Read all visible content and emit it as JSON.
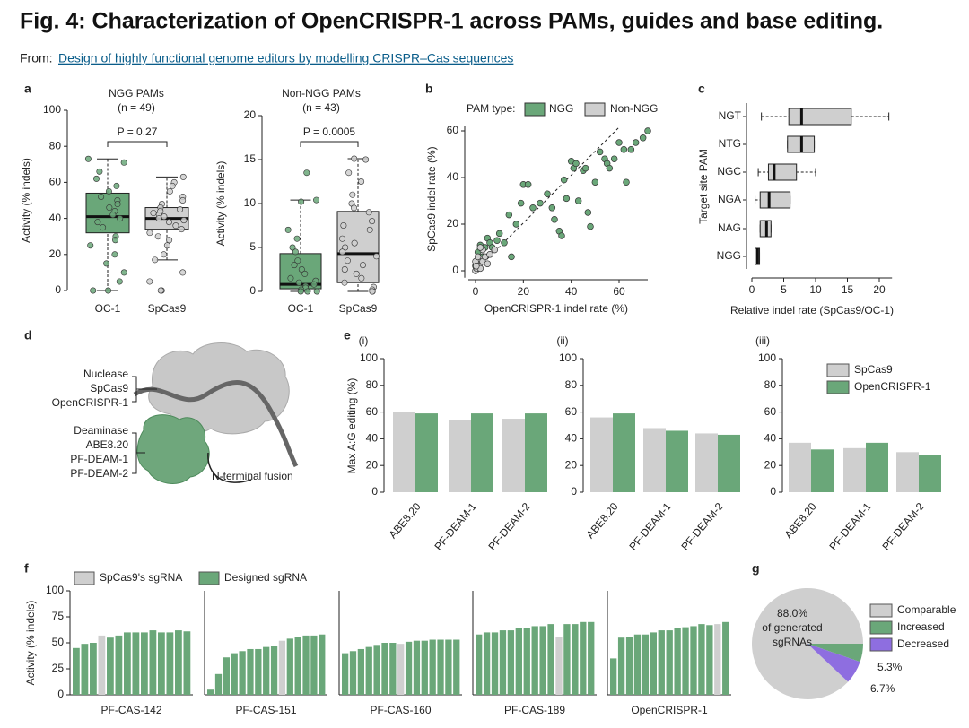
{
  "header": {
    "title": "Fig. 4: Characterization of OpenCRISPR-1 across PAMs, guides and base editing.",
    "from": "From:",
    "link": "Design of highly functional genome editors by modelling CRISPR–Cas sequences"
  },
  "panel_labels": [
    "a",
    "b",
    "c",
    "d",
    "e",
    "f",
    "g"
  ],
  "diagram": {
    "nuclease": [
      "Nuclease",
      "SpCas9",
      "OpenCRISPR-1"
    ],
    "deaminase": [
      "Deaminase",
      "ABE8.20",
      "PF-DEAM-1",
      "PF-DEAM-2"
    ],
    "fusion_label": "N-terminal fusion"
  },
  "chart_data": [
    {
      "type": "box",
      "title": "NGG PAMs",
      "subtitle": "(n = 49)",
      "ylabel": "Activity (% indels)",
      "annotation": "P = 0.27",
      "categories": [
        "OC-1",
        "SpCas9"
      ],
      "ylim": [
        0,
        100
      ],
      "yticks": [
        0,
        20,
        40,
        60,
        80,
        100
      ],
      "boxes": [
        {
          "color": "#6aa779",
          "min": 0,
          "q1": 32,
          "median": 41,
          "q3": 54,
          "max": 73,
          "points": [
            73,
            71,
            66,
            62,
            58,
            55,
            52,
            50,
            48,
            46,
            44,
            42,
            40,
            38,
            35,
            30,
            28,
            25,
            20,
            15,
            10,
            5,
            0,
            0
          ]
        },
        {
          "color": "#cfcfcf",
          "min": 17,
          "q1": 34,
          "median": 40,
          "q3": 46,
          "max": 63,
          "points": [
            63,
            60,
            58,
            55,
            52,
            50,
            48,
            46,
            45,
            44,
            43,
            42,
            41,
            40,
            39,
            38,
            36,
            34,
            32,
            30,
            28,
            25,
            20,
            17,
            10,
            5,
            0,
            0
          ]
        }
      ]
    },
    {
      "type": "box",
      "title": "Non-NGG PAMs",
      "subtitle": "(n = 43)",
      "ylabel": "Activity (% indels)",
      "annotation": "P = 0.0005",
      "categories": [
        "OC-1",
        "SpCas9"
      ],
      "ylim": [
        0,
        20
      ],
      "yticks": [
        0,
        5,
        10,
        15,
        20
      ],
      "boxes": [
        {
          "color": "#6aa779",
          "min": 0,
          "q1": 0.3,
          "median": 0.8,
          "q3": 4.3,
          "max": 10.4,
          "points": [
            13.5,
            10.4,
            10.2,
            7,
            6,
            5,
            4.5,
            3.5,
            3,
            2.5,
            2,
            1.5,
            1.2,
            1,
            0.8,
            0.6,
            0.4,
            0.2,
            0,
            0,
            0
          ]
        },
        {
          "color": "#cfcfcf",
          "min": 0,
          "q1": 1.0,
          "median": 4.3,
          "q3": 9.1,
          "max": 15.1,
          "points": [
            15.1,
            15,
            13.5,
            12.5,
            11,
            10,
            9.5,
            9,
            8,
            7.5,
            7,
            6,
            5.5,
            5,
            4.5,
            4,
            3.5,
            3,
            2.5,
            2,
            1.5,
            1,
            0.5,
            0.2,
            0,
            0
          ]
        }
      ]
    },
    {
      "type": "scatter",
      "legend_title": "PAM type:",
      "xlabel": "OpenCRISPR-1 indel rate (%)",
      "ylabel": "SpCas9 indel rate (%)",
      "xlim": [
        -3,
        72
      ],
      "ylim": [
        -3,
        62
      ],
      "xticks": [
        0,
        20,
        40,
        60
      ],
      "yticks": [
        0,
        20,
        40,
        60
      ],
      "series": [
        {
          "name": "NGG",
          "color": "#6aa779",
          "x": [
            0,
            1,
            2,
            3,
            4,
            5,
            6,
            7,
            9,
            10,
            12,
            14,
            15,
            17,
            19,
            20,
            22,
            24,
            27,
            30,
            32,
            33,
            35,
            36,
            37,
            38,
            40,
            41,
            42,
            43,
            45,
            46,
            47,
            48,
            50,
            52,
            54,
            55,
            56,
            58,
            60,
            62,
            63,
            65,
            67,
            70,
            72
          ],
          "y": [
            2,
            8,
            11,
            6,
            10,
            14,
            12,
            10,
            13,
            16,
            12,
            24,
            6,
            20,
            29,
            37,
            37,
            27,
            29,
            33,
            27,
            22,
            17,
            15,
            39,
            31,
            47,
            44,
            46,
            30,
            43,
            44,
            25,
            19,
            38,
            51,
            48,
            46,
            44,
            48,
            55,
            52,
            38,
            52,
            55,
            57,
            60
          ]
        },
        {
          "name": "Non-NGG",
          "color": "#cfcfcf",
          "x": [
            0,
            0.5,
            1,
            1.5,
            2,
            2,
            3,
            0,
            1,
            4,
            5,
            3,
            6,
            2,
            0.3,
            8
          ],
          "y": [
            0,
            1,
            3,
            2,
            5,
            1,
            4,
            4,
            6,
            6,
            3,
            9,
            7,
            10,
            2,
            9
          ]
        }
      ]
    },
    {
      "type": "box",
      "horizontal": true,
      "xlabel": "Relative indel rate (SpCas9/OC-1)",
      "ylabel": "Target site PAM",
      "color": "#cfcfcf",
      "categories": [
        "NGT",
        "NTG",
        "NGC",
        "NGA",
        "NAG",
        "NGG"
      ],
      "xlim": [
        0,
        22
      ],
      "xticks": [
        0,
        5,
        10,
        15,
        20
      ],
      "boxes": [
        {
          "min": 1.5,
          "q1": 5.8,
          "median": 7.8,
          "q3": 15.6,
          "max": 21.5
        },
        {
          "min": 5.6,
          "q1": 5.6,
          "median": 7.8,
          "q3": 9.8,
          "max": 9.8
        },
        {
          "min": 1,
          "q1": 2.6,
          "median": 3.5,
          "q3": 7,
          "max": 10
        },
        {
          "min": 0.5,
          "q1": 1.3,
          "median": 2.7,
          "q3": 6,
          "max": 6
        },
        {
          "min": 1.3,
          "q1": 1.3,
          "median": 2.3,
          "q3": 3,
          "max": 3
        },
        {
          "min": 0.5,
          "q1": 0.5,
          "median": 0.9,
          "q3": 1.2,
          "max": 1.2
        }
      ]
    },
    {
      "type": "bar",
      "barmode": "group",
      "subtitle": "(i)",
      "ylabel": "Max A:G editing (%)",
      "categories": [
        "ABE8.20",
        "PF-DEAM-1",
        "PF-DEAM-2"
      ],
      "ylim": [
        0,
        100
      ],
      "yticks": [
        0,
        20,
        40,
        60,
        80,
        100
      ],
      "series": [
        {
          "color": "#cfcfcf",
          "values": [
            60,
            54,
            55
          ]
        },
        {
          "color": "#6aa779",
          "values": [
            59,
            59,
            59
          ]
        }
      ]
    },
    {
      "type": "bar",
      "barmode": "group",
      "subtitle": "(ii)",
      "categories": [
        "ABE8.20",
        "PF-DEAM-1",
        "PF-DEAM-2"
      ],
      "ylim": [
        0,
        100
      ],
      "yticks": [
        0,
        20,
        40,
        60,
        80,
        100
      ],
      "series": [
        {
          "color": "#cfcfcf",
          "values": [
            56,
            48,
            44
          ]
        },
        {
          "color": "#6aa779",
          "values": [
            59,
            46,
            43
          ]
        }
      ]
    },
    {
      "type": "bar",
      "barmode": "group",
      "subtitle": "(iii)",
      "categories": [
        "ABE8.20",
        "PF-DEAM-1",
        "PF-DEAM-2"
      ],
      "ylim": [
        0,
        100
      ],
      "yticks": [
        0,
        20,
        40,
        60,
        80,
        100
      ],
      "series": [
        {
          "name": "SpCas9",
          "color": "#cfcfcf",
          "values": [
            37,
            33,
            30
          ]
        },
        {
          "name": "OpenCRISPR-1",
          "color": "#6aa779",
          "values": [
            32,
            37,
            28
          ]
        }
      ]
    },
    {
      "type": "bar",
      "barmode": "overlay",
      "xlabel": "PF-CAS-142",
      "ylabel": "Activity (% indels)",
      "ylim": [
        0,
        100
      ],
      "yticks": [
        0,
        25,
        50,
        75,
        100
      ],
      "series": [
        {
          "name": "SpCas9's sgRNA",
          "color": "#cfcfcf",
          "values": [
            null,
            null,
            null,
            57,
            null,
            null,
            null,
            null,
            null,
            null,
            null,
            null,
            null,
            null
          ]
        },
        {
          "name": "Designed sgRNA",
          "color": "#6aa779",
          "values": [
            45,
            49,
            50,
            null,
            55,
            57,
            60,
            60,
            60,
            62,
            60,
            60,
            62,
            61
          ]
        }
      ]
    },
    {
      "type": "bar",
      "barmode": "overlay",
      "xlabel": "PF-CAS-151",
      "ylim": [
        0,
        100
      ],
      "series": [
        {
          "color": "#cfcfcf",
          "values": [
            null,
            null,
            null,
            null,
            null,
            null,
            null,
            null,
            null,
            52,
            null,
            null,
            null,
            null,
            null
          ]
        },
        {
          "color": "#6aa779",
          "values": [
            5,
            20,
            36,
            40,
            42,
            44,
            44,
            46,
            47,
            null,
            54,
            56,
            57,
            57,
            58
          ]
        }
      ]
    },
    {
      "type": "bar",
      "barmode": "overlay",
      "xlabel": "PF-CAS-160",
      "ylim": [
        0,
        100
      ],
      "series": [
        {
          "color": "#cfcfcf",
          "values": [
            null,
            null,
            null,
            null,
            null,
            null,
            null,
            49,
            null,
            null,
            null,
            null,
            null,
            null,
            null
          ]
        },
        {
          "color": "#6aa779",
          "values": [
            40,
            42,
            44,
            46,
            48,
            50,
            50,
            null,
            51,
            52,
            52,
            53,
            53,
            53,
            53
          ]
        }
      ]
    },
    {
      "type": "bar",
      "barmode": "overlay",
      "xlabel": "PF-CAS-189",
      "ylim": [
        0,
        100
      ],
      "series": [
        {
          "color": "#cfcfcf",
          "values": [
            null,
            null,
            null,
            null,
            null,
            null,
            null,
            null,
            null,
            null,
            56,
            null,
            null,
            null,
            null
          ]
        },
        {
          "color": "#6aa779",
          "values": [
            58,
            60,
            60,
            62,
            62,
            64,
            64,
            66,
            66,
            68,
            null,
            68,
            68,
            70,
            70
          ]
        }
      ]
    },
    {
      "type": "bar",
      "barmode": "overlay",
      "xlabel": "OpenCRISPR-1",
      "ylim": [
        0,
        100
      ],
      "series": [
        {
          "color": "#cfcfcf",
          "values": [
            null,
            null,
            null,
            null,
            null,
            null,
            null,
            null,
            null,
            null,
            null,
            null,
            null,
            68,
            null
          ]
        },
        {
          "color": "#6aa779",
          "values": [
            35,
            55,
            56,
            58,
            58,
            60,
            62,
            62,
            64,
            65,
            66,
            68,
            67,
            null,
            70
          ]
        }
      ]
    },
    {
      "type": "pie",
      "categories": [
        "Comparable",
        "Increased",
        "Decreased"
      ],
      "values": [
        88.0,
        5.3,
        6.7
      ],
      "value_labels": [
        "88.0%",
        "5.3%",
        "6.7%"
      ],
      "colors": [
        "#cfcfcf",
        "#6aa779",
        "#8e6ee0"
      ],
      "annotation": [
        "of generated",
        "sgRNAs"
      ]
    }
  ]
}
